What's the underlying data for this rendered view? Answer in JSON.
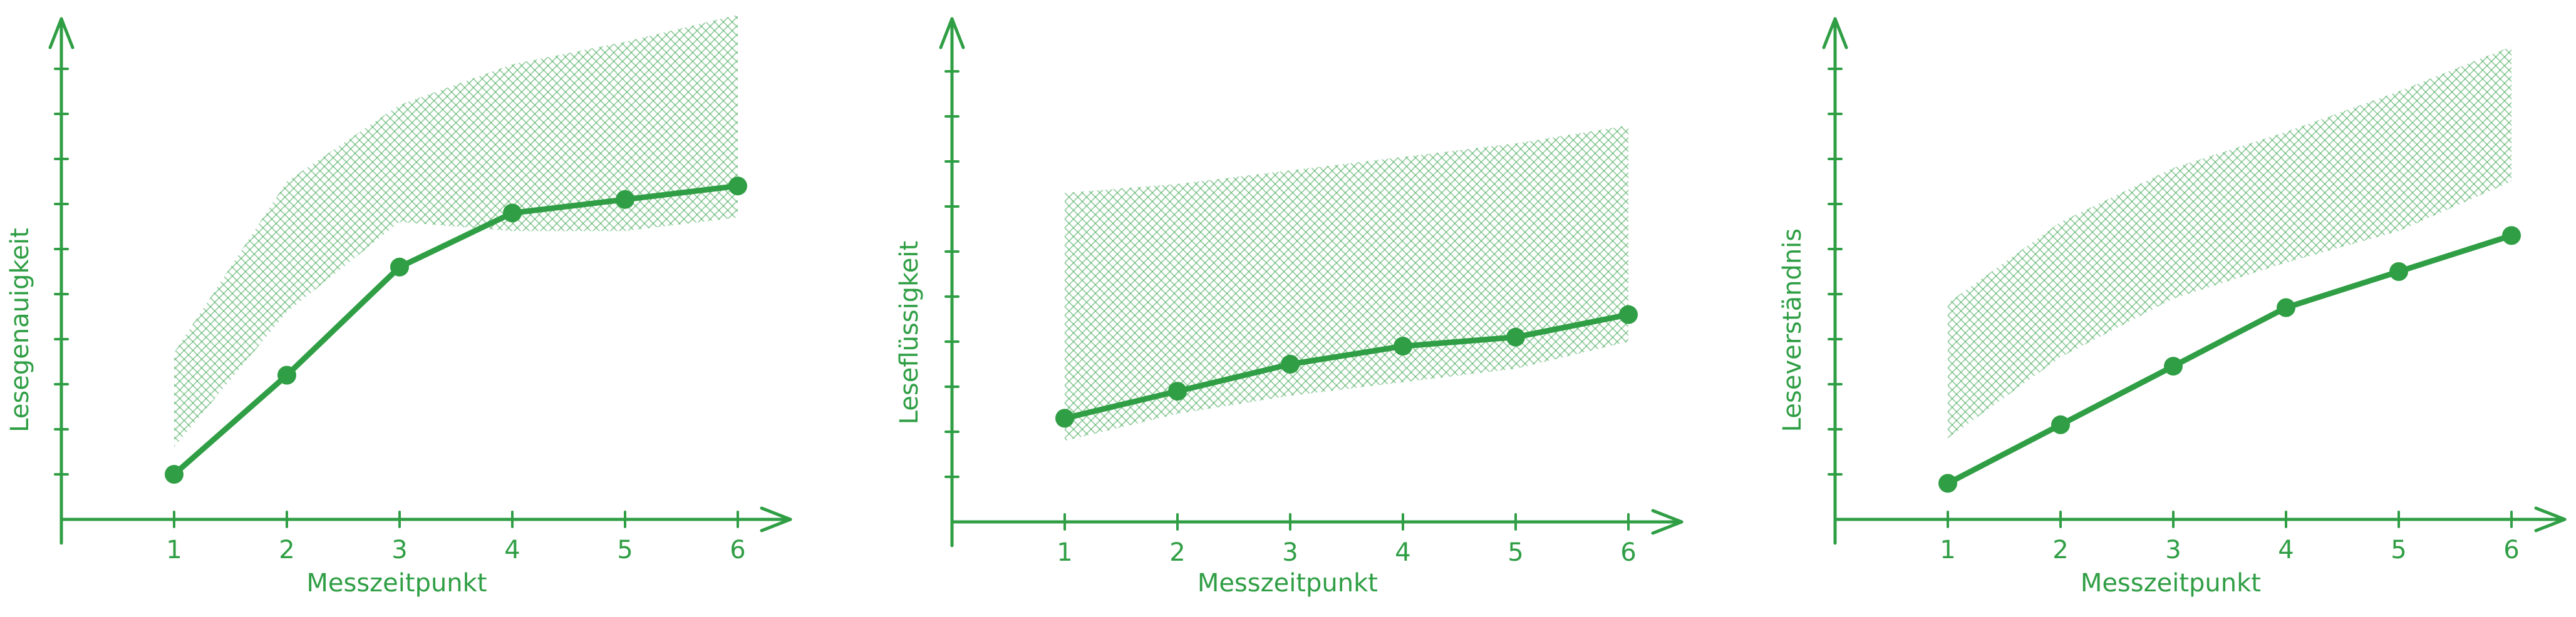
{
  "colors": {
    "accent": "#2f9e44",
    "band": "#2f9e44"
  },
  "chart_data": [
    {
      "type": "line",
      "title": "",
      "xlabel": "Messzeitpunkt",
      "ylabel": "Lesegenauigkeit",
      "x": [
        1,
        2,
        3,
        4,
        5,
        6
      ],
      "categories": [
        "1",
        "2",
        "3",
        "4",
        "5",
        "6"
      ],
      "series": [
        {
          "values": [
            1,
            3.2,
            5.6,
            6.8,
            7.1,
            7.4
          ]
        }
      ],
      "band": {
        "x": [
          1,
          2,
          3,
          4,
          5,
          6
        ],
        "lower": [
          1.6,
          4.6,
          6.6,
          6.4,
          6.4,
          6.7
        ],
        "upper": [
          3.7,
          7.5,
          9.2,
          10.1,
          10.6,
          11.2
        ]
      },
      "xlim": [
        0,
        6.6
      ],
      "ylim": [
        0,
        11.3
      ],
      "grid": false
    },
    {
      "type": "line",
      "title": "",
      "xlabel": "Messzeitpunkt",
      "ylabel": "Leseflüssigkeit",
      "x": [
        1,
        2,
        3,
        4,
        5,
        6
      ],
      "categories": [
        "1",
        "2",
        "3",
        "4",
        "5",
        "6"
      ],
      "series": [
        {
          "values": [
            2.3,
            2.9,
            3.5,
            3.9,
            4.1,
            4.6
          ]
        }
      ],
      "band": {
        "x": [
          1,
          2,
          3,
          4,
          5,
          6
        ],
        "lower": [
          1.8,
          2.4,
          2.8,
          3.1,
          3.4,
          4.0
        ],
        "upper": [
          7.3,
          7.5,
          7.8,
          8.1,
          8.4,
          8.8
        ]
      },
      "xlim": [
        0,
        6.6
      ],
      "ylim": [
        0,
        11.3
      ],
      "grid": false
    },
    {
      "type": "line",
      "title": "",
      "xlabel": "Messzeitpunkt",
      "ylabel": "Leseverständnis",
      "x": [
        1,
        2,
        3,
        4,
        5,
        6
      ],
      "categories": [
        "1",
        "2",
        "3",
        "4",
        "5",
        "6"
      ],
      "series": [
        {
          "values": [
            0.8,
            2.1,
            3.4,
            4.7,
            5.5,
            6.3
          ]
        }
      ],
      "band": {
        "x": [
          1,
          2,
          3,
          4,
          5,
          6
        ],
        "lower": [
          1.8,
          3.6,
          4.9,
          5.7,
          6.4,
          7.5
        ],
        "upper": [
          4.8,
          6.6,
          7.8,
          8.6,
          9.5,
          10.5
        ]
      },
      "xlim": [
        0,
        6.6
      ],
      "ylim": [
        0,
        11.3
      ],
      "grid": false
    }
  ]
}
